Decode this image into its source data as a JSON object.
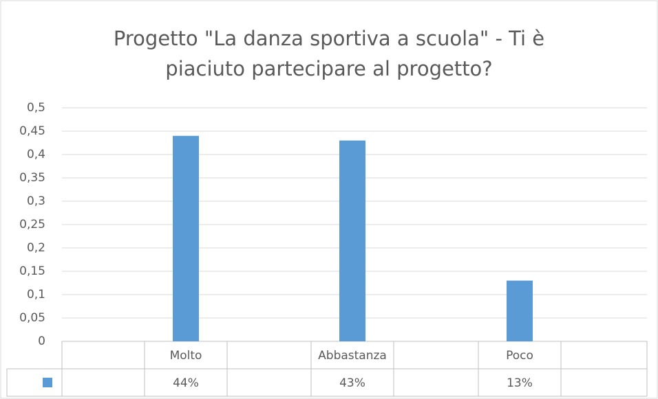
{
  "chart_data": {
    "type": "bar",
    "title": "Progetto \"La danza sportiva a scuola\" - Ti è piaciuto partecipare al progetto?",
    "categories": [
      "Molto",
      "Abbastanza",
      "Poco"
    ],
    "values": [
      0.44,
      0.43,
      0.13
    ],
    "value_labels": [
      "44%",
      "43%",
      "13%"
    ],
    "color": "#5b9bd5",
    "ylim": [
      0,
      0.5
    ],
    "yticks": [
      0,
      {
        "value": 0.05,
        "label": "0,05"
      },
      {
        "value": 0.1,
        "label": "0,1"
      },
      {
        "value": 0.15,
        "label": "0,15"
      },
      {
        "value": 0.2,
        "label": "0,2"
      },
      {
        "value": 0.25,
        "label": "0,25"
      },
      {
        "value": 0.3,
        "label": "0,3"
      },
      {
        "value": 0.35,
        "label": "0,35"
      },
      {
        "value": 0.4,
        "label": "0,4"
      },
      {
        "value": 0.45,
        "label": "0,45"
      },
      {
        "value": 0.5,
        "label": "0,5"
      }
    ],
    "grid": true
  }
}
